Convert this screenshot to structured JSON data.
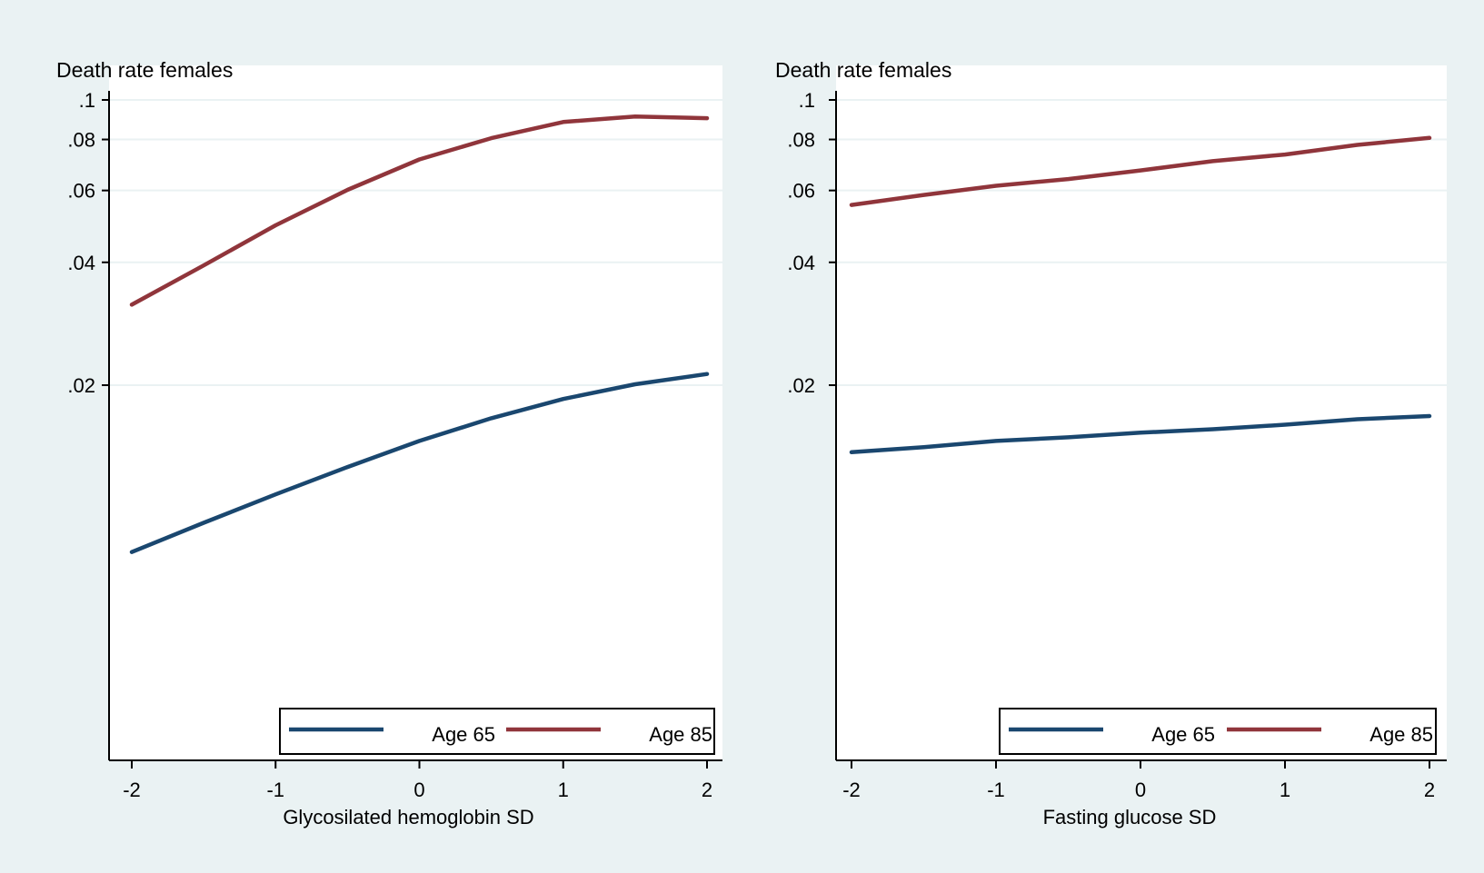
{
  "colors": {
    "background": "#eaf2f3",
    "plot_background": "#ffffff",
    "gridline": "#eaf2f3",
    "axis": "#000000",
    "age65": "#1a476f",
    "age85": "#90353b"
  },
  "chart_data": [
    {
      "type": "line",
      "title": "Death rate females",
      "xlabel": "Glycosilated hemoglobin SD",
      "ylabel": "Death rate females",
      "y_scale": "log",
      "xlim": [
        -2,
        2
      ],
      "ylim": [
        0.0077,
        0.1
      ],
      "x_ticks": [
        -2,
        -1,
        0,
        1,
        2
      ],
      "x_tick_labels": [
        "-2",
        "-1",
        "0",
        "1",
        "2"
      ],
      "y_ticks": [
        0.02,
        0.04,
        0.06,
        0.08,
        0.1
      ],
      "y_tick_labels": [
        ".02",
        ".04",
        ".06",
        ".08",
        ".1"
      ],
      "grid": true,
      "legend_position": "bottom-right",
      "x": [
        -2,
        -1.5,
        -1,
        -0.5,
        0,
        0.5,
        1,
        1.5,
        2
      ],
      "series": [
        {
          "name": "Age 65",
          "color_key": "age65",
          "values": [
            0.0078,
            0.0092,
            0.0108,
            0.0126,
            0.0146,
            0.0166,
            0.0185,
            0.0201,
            0.0213
          ]
        },
        {
          "name": "Age 85",
          "color_key": "age85",
          "values": [
            0.0315,
            0.0393,
            0.0493,
            0.0602,
            0.0715,
            0.0806,
            0.0883,
            0.0911,
            0.0902
          ]
        }
      ]
    },
    {
      "type": "line",
      "title": "Death rate females",
      "xlabel": "Fasting glucose SD",
      "ylabel": "Death rate females",
      "y_scale": "log",
      "xlim": [
        -2,
        2
      ],
      "ylim": [
        0.0077,
        0.1
      ],
      "x_ticks": [
        -2,
        -1,
        0,
        1,
        2
      ],
      "x_tick_labels": [
        "-2",
        "-1",
        "0",
        "1",
        "2"
      ],
      "y_ticks": [
        0.02,
        0.04,
        0.06,
        0.08,
        0.1
      ],
      "y_tick_labels": [
        ".02",
        ".04",
        ".06",
        ".08",
        ".1"
      ],
      "grid": true,
      "legend_position": "bottom-right",
      "x": [
        -2,
        -1.5,
        -1,
        -0.5,
        0,
        0.5,
        1,
        1.5,
        2
      ],
      "series": [
        {
          "name": "Age 65",
          "color_key": "age65",
          "values": [
            0.0137,
            0.0141,
            0.0146,
            0.0149,
            0.0153,
            0.0156,
            0.016,
            0.0165,
            0.0168
          ]
        },
        {
          "name": "Age 85",
          "color_key": "age85",
          "values": [
            0.0553,
            0.0585,
            0.0616,
            0.064,
            0.0672,
            0.0708,
            0.0735,
            0.0776,
            0.0807
          ]
        }
      ]
    }
  ]
}
